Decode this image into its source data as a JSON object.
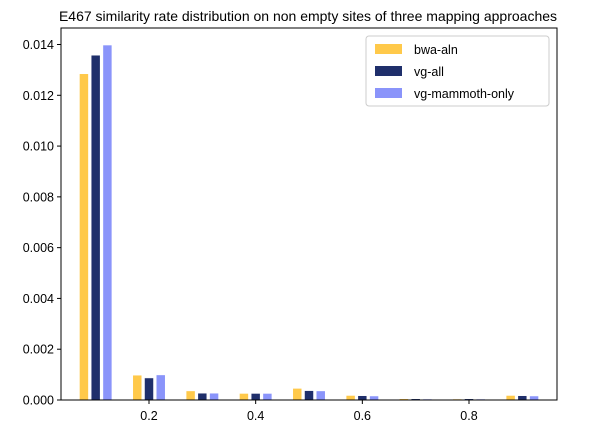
{
  "chart_data": {
    "type": "bar",
    "title": "E467 similarity rate distribution on non empty sites of three mapping approaches",
    "xlabel": "",
    "ylabel": "",
    "xlim": [
      0.035,
      0.965
    ],
    "ylim": [
      0,
      0.01465
    ],
    "x_ticks": [
      0.2,
      0.4,
      0.6,
      0.8
    ],
    "x_tick_labels": [
      "0.2",
      "0.4",
      "0.6",
      "0.8"
    ],
    "y_ticks": [
      0,
      0.002,
      0.004,
      0.006,
      0.008,
      0.01,
      0.012,
      0.014
    ],
    "y_tick_labels": [
      "0.000",
      "0.002",
      "0.004",
      "0.006",
      "0.008",
      "0.010",
      "0.012",
      "0.014"
    ],
    "grid": false,
    "legend_position": "upper right",
    "x": [
      0.1,
      0.2,
      0.3,
      0.4,
      0.5,
      0.6,
      0.7,
      0.8,
      0.9
    ],
    "series": [
      {
        "name": "bwa-aln",
        "color": "#FFC94A",
        "values": [
          0.01285,
          0.00098,
          0.00036,
          0.00026,
          0.00046,
          0.00018,
          5e-05,
          4e-05,
          0.00018
        ]
      },
      {
        "name": "vg-all",
        "color": "#1F2F6B",
        "values": [
          0.01358,
          0.00087,
          0.00027,
          0.00026,
          0.00037,
          0.00017,
          5e-05,
          5e-05,
          0.00017
        ]
      },
      {
        "name": "vg-mammoth-only",
        "color": "#8A94FA",
        "values": [
          0.01398,
          0.00099,
          0.00027,
          0.00026,
          0.00036,
          0.00016,
          4e-05,
          4e-05,
          0.00016
        ]
      }
    ]
  }
}
